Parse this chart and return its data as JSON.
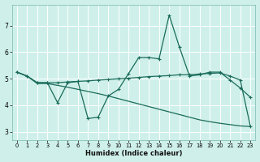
{
  "xlabel": "Humidex (Indice chaleur)",
  "bg_color": "#cff0ea",
  "grid_color": "#b0ddd6",
  "line_color": "#1a6b5a",
  "xlim": [
    -0.5,
    23.5
  ],
  "ylim": [
    2.7,
    7.8
  ],
  "xticks": [
    0,
    1,
    2,
    3,
    4,
    5,
    6,
    7,
    8,
    9,
    10,
    11,
    12,
    13,
    14,
    15,
    16,
    17,
    18,
    19,
    20,
    21,
    22,
    23
  ],
  "yticks": [
    3,
    4,
    5,
    6,
    7
  ],
  "line1_x": [
    0,
    1,
    2,
    3,
    4,
    5,
    6,
    7,
    8,
    9,
    10,
    11,
    12,
    13,
    14,
    15,
    16,
    17,
    18,
    19,
    20,
    21,
    22,
    23
  ],
  "line1_y": [
    5.25,
    5.1,
    4.85,
    4.85,
    4.1,
    4.85,
    4.9,
    3.5,
    3.55,
    4.35,
    4.6,
    5.2,
    5.8,
    5.8,
    5.75,
    7.4,
    6.2,
    5.1,
    5.15,
    5.25,
    5.25,
    4.95,
    4.65,
    4.3
  ],
  "line2_x": [
    0,
    1,
    2,
    3,
    4,
    5,
    6,
    7,
    8,
    9,
    10,
    11,
    12,
    13,
    14,
    15,
    16,
    17,
    18,
    19,
    20,
    21,
    22,
    23
  ],
  "line2_y": [
    5.25,
    5.1,
    4.85,
    4.85,
    4.85,
    4.88,
    4.9,
    4.92,
    4.95,
    4.97,
    5.0,
    5.02,
    5.05,
    5.08,
    5.1,
    5.12,
    5.15,
    5.15,
    5.18,
    5.2,
    5.22,
    5.1,
    4.95,
    3.2
  ],
  "line3_x": [
    0,
    1,
    2,
    3,
    4,
    5,
    6,
    7,
    8,
    9,
    10,
    11,
    12,
    13,
    14,
    15,
    16,
    17,
    18,
    19,
    20,
    21,
    22,
    23
  ],
  "line3_y": [
    5.25,
    5.1,
    4.82,
    4.82,
    4.75,
    4.68,
    4.6,
    4.52,
    4.44,
    4.35,
    4.25,
    4.15,
    4.05,
    3.95,
    3.85,
    3.75,
    3.65,
    3.55,
    3.45,
    3.38,
    3.32,
    3.27,
    3.22,
    3.2
  ]
}
